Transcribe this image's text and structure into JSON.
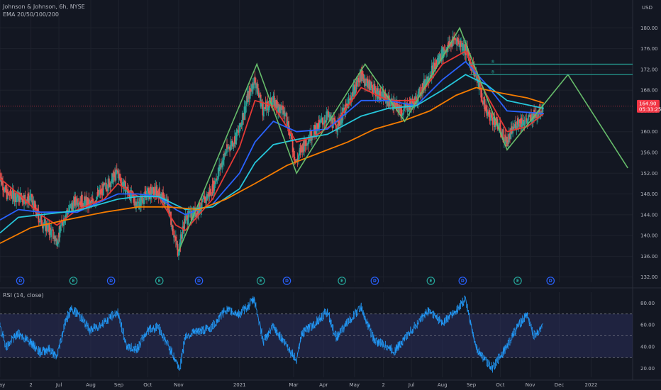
{
  "header": {
    "symbol_line": "Johnson & Johnson, 6h, NYSE",
    "indicator_line": "EMA 20/50/100/200",
    "currency_label": "USD"
  },
  "rsi_panel": {
    "label": "RSI (14, close)"
  },
  "price_badge": {
    "price": "164.90",
    "countdown": "05:33:25",
    "color": "#f23645"
  },
  "colors": {
    "background": "#131722",
    "candle_up": "#26a69a",
    "candle_down": "#ef5350",
    "ema20": "#e53935",
    "ema50": "#2962ff",
    "ema100": "#26c6da",
    "ema200": "#f57c00",
    "pattern": "#66bb6a",
    "levels": "#26a69a",
    "rsi_line": "#2196f3",
    "rsi_band": "#2a2e5a"
  },
  "events": [
    {
      "letter": "D",
      "kind": "dividend",
      "color": "#2962ff",
      "date": "2020-05-22"
    },
    {
      "letter": "E",
      "kind": "earnings",
      "color": "#26a69a",
      "date": "2020-07-16"
    },
    {
      "letter": "D",
      "kind": "dividend",
      "color": "#2962ff",
      "date": "2020-08-24"
    },
    {
      "letter": "E",
      "kind": "earnings",
      "color": "#26a69a",
      "date": "2020-10-13"
    },
    {
      "letter": "D",
      "kind": "dividend",
      "color": "#2962ff",
      "date": "2020-11-23"
    },
    {
      "letter": "E",
      "kind": "earnings",
      "color": "#26a69a",
      "date": "2021-01-26"
    },
    {
      "letter": "D",
      "kind": "dividend",
      "color": "#2962ff",
      "date": "2021-02-22"
    },
    {
      "letter": "E",
      "kind": "earnings",
      "color": "#26a69a",
      "date": "2021-04-20"
    },
    {
      "letter": "D",
      "kind": "dividend",
      "color": "#2962ff",
      "date": "2021-05-24"
    },
    {
      "letter": "E",
      "kind": "earnings",
      "color": "#26a69a",
      "date": "2021-07-21"
    },
    {
      "letter": "D",
      "kind": "dividend",
      "color": "#2962ff",
      "date": "2021-08-23"
    },
    {
      "letter": "E",
      "kind": "earnings",
      "color": "#26a69a",
      "date": "2021-10-19"
    },
    {
      "letter": "D",
      "kind": "dividend",
      "color": "#2962ff",
      "date": "2021-11-22"
    }
  ],
  "chart_data": [
    {
      "type": "line",
      "title": "Johnson & Johnson, 6h, NYSE",
      "x_type": "date",
      "xlim": [
        "2020-05-01",
        "2022-02-15"
      ],
      "ylim": [
        131,
        184
      ],
      "x_ticks": [
        {
          "label": "May",
          "date": "2020-05-01"
        },
        {
          "label": "2",
          "date": "2020-06-02"
        },
        {
          "label": "Jul",
          "date": "2020-07-01"
        },
        {
          "label": "Aug",
          "date": "2020-08-03"
        },
        {
          "label": "Sep",
          "date": "2020-09-01"
        },
        {
          "label": "Oct",
          "date": "2020-10-01"
        },
        {
          "label": "Nov",
          "date": "2020-11-02"
        },
        {
          "label": "2021",
          "date": "2021-01-04"
        },
        {
          "label": "Mar",
          "date": "2021-03-01"
        },
        {
          "label": "Apr",
          "date": "2021-04-01"
        },
        {
          "label": "May",
          "date": "2021-05-03"
        },
        {
          "label": "2",
          "date": "2021-06-02"
        },
        {
          "label": "Jul",
          "date": "2021-07-01"
        },
        {
          "label": "Aug",
          "date": "2021-08-02"
        },
        {
          "label": "Sep",
          "date": "2021-09-01"
        },
        {
          "label": "Oct",
          "date": "2021-10-01"
        },
        {
          "label": "Nov",
          "date": "2021-11-01"
        },
        {
          "label": "Dec",
          "date": "2021-12-01"
        },
        {
          "label": "2022",
          "date": "2022-01-03"
        }
      ],
      "y_ticks": [
        132,
        136,
        140,
        144,
        148,
        152,
        156,
        160,
        164,
        168,
        172,
        176,
        180
      ],
      "last_price": 164.9,
      "price_path": [
        [
          "2020-05-01",
          152
        ],
        [
          "2020-05-08",
          148
        ],
        [
          "2020-05-20",
          147.5
        ],
        [
          "2020-06-02",
          147
        ],
        [
          "2020-06-12",
          143
        ],
        [
          "2020-06-22",
          141
        ],
        [
          "2020-06-29",
          139
        ],
        [
          "2020-07-08",
          144
        ],
        [
          "2020-07-20",
          147
        ],
        [
          "2020-08-03",
          146
        ],
        [
          "2020-08-17",
          149
        ],
        [
          "2020-08-31",
          152
        ],
        [
          "2020-09-10",
          148.5
        ],
        [
          "2020-09-21",
          146
        ],
        [
          "2020-10-01",
          148
        ],
        [
          "2020-10-12",
          148.5
        ],
        [
          "2020-10-22",
          146
        ],
        [
          "2020-10-30",
          139
        ],
        [
          "2020-11-02",
          137
        ],
        [
          "2020-11-09",
          143
        ],
        [
          "2020-11-23",
          145
        ],
        [
          "2020-12-07",
          149
        ],
        [
          "2020-12-21",
          156
        ],
        [
          "2021-01-04",
          160
        ],
        [
          "2021-01-12",
          166
        ],
        [
          "2021-01-20",
          170
        ],
        [
          "2021-01-29",
          164
        ],
        [
          "2021-02-08",
          166
        ],
        [
          "2021-02-22",
          163
        ],
        [
          "2021-03-04",
          154
        ],
        [
          "2021-03-10",
          157
        ],
        [
          "2021-03-22",
          160
        ],
        [
          "2021-04-05",
          163
        ],
        [
          "2021-04-15",
          161
        ],
        [
          "2021-04-26",
          165
        ],
        [
          "2021-05-10",
          171
        ],
        [
          "2021-05-24",
          168
        ],
        [
          "2021-06-07",
          166
        ],
        [
          "2021-06-21",
          164
        ],
        [
          "2021-07-06",
          166
        ],
        [
          "2021-07-20",
          171
        ],
        [
          "2021-08-02",
          175
        ],
        [
          "2021-08-16",
          178
        ],
        [
          "2021-08-26",
          176
        ],
        [
          "2021-09-06",
          171
        ],
        [
          "2021-09-17",
          164
        ],
        [
          "2021-09-30",
          161
        ],
        [
          "2021-10-08",
          158
        ],
        [
          "2021-10-19",
          162
        ],
        [
          "2021-10-29",
          162
        ],
        [
          "2021-11-05",
          163
        ],
        [
          "2021-11-15",
          164.9
        ]
      ],
      "ema_series": [
        {
          "name": "EMA 20",
          "color": "#e53935",
          "values": [
            [
              "2020-05-01",
              151
            ],
            [
              "2020-05-20",
              148
            ],
            [
              "2020-06-12",
              144
            ],
            [
              "2020-06-29",
              142
            ],
            [
              "2020-07-20",
              145
            ],
            [
              "2020-08-17",
              147
            ],
            [
              "2020-08-31",
              150
            ],
            [
              "2020-09-21",
              147.5
            ],
            [
              "2020-10-12",
              147.5
            ],
            [
              "2020-10-30",
              142
            ],
            [
              "2020-11-09",
              141
            ],
            [
              "2020-12-07",
              147
            ],
            [
              "2021-01-04",
              157
            ],
            [
              "2021-01-20",
              166
            ],
            [
              "2021-02-08",
              165
            ],
            [
              "2021-03-04",
              158
            ],
            [
              "2021-03-22",
              159
            ],
            [
              "2021-04-15",
              162
            ],
            [
              "2021-05-10",
              168.5
            ],
            [
              "2021-06-07",
              166
            ],
            [
              "2021-07-06",
              166
            ],
            [
              "2021-08-02",
              173
            ],
            [
              "2021-08-26",
              175.5
            ],
            [
              "2021-09-17",
              167
            ],
            [
              "2021-10-08",
              160
            ],
            [
              "2021-10-29",
              161
            ],
            [
              "2021-11-15",
              163.5
            ]
          ]
        },
        {
          "name": "EMA 50",
          "color": "#2962ff",
          "values": [
            [
              "2020-05-01",
              143
            ],
            [
              "2020-05-20",
              145
            ],
            [
              "2020-06-12",
              144.5
            ],
            [
              "2020-07-20",
              144.5
            ],
            [
              "2020-08-31",
              148
            ],
            [
              "2020-09-21",
              148
            ],
            [
              "2020-10-12",
              147.5
            ],
            [
              "2020-10-30",
              145
            ],
            [
              "2020-11-09",
              144
            ],
            [
              "2020-12-07",
              146
            ],
            [
              "2021-01-04",
              152
            ],
            [
              "2021-01-20",
              158
            ],
            [
              "2021-02-08",
              162
            ],
            [
              "2021-03-04",
              160
            ],
            [
              "2021-04-05",
              160.5
            ],
            [
              "2021-05-10",
              166
            ],
            [
              "2021-06-07",
              166
            ],
            [
              "2021-07-06",
              165
            ],
            [
              "2021-08-02",
              170
            ],
            [
              "2021-08-26",
              173.5
            ],
            [
              "2021-09-17",
              169
            ],
            [
              "2021-10-08",
              164
            ],
            [
              "2021-11-15",
              163.5
            ]
          ]
        },
        {
          "name": "EMA 100",
          "color": "#26c6da",
          "values": [
            [
              "2020-05-01",
              140.5
            ],
            [
              "2020-05-20",
              143.5
            ],
            [
              "2020-06-12",
              144
            ],
            [
              "2020-07-20",
              144.8
            ],
            [
              "2020-08-31",
              147
            ],
            [
              "2020-09-21",
              147.5
            ],
            [
              "2020-10-12",
              147.5
            ],
            [
              "2020-11-09",
              145
            ],
            [
              "2020-12-07",
              145.5
            ],
            [
              "2021-01-04",
              149
            ],
            [
              "2021-01-20",
              154
            ],
            [
              "2021-02-08",
              157.5
            ],
            [
              "2021-03-04",
              158.5
            ],
            [
              "2021-04-05",
              159.5
            ],
            [
              "2021-05-10",
              163
            ],
            [
              "2021-06-07",
              164.5
            ],
            [
              "2021-07-06",
              165
            ],
            [
              "2021-08-02",
              168
            ],
            [
              "2021-08-26",
              171
            ],
            [
              "2021-09-17",
              169
            ],
            [
              "2021-10-08",
              166
            ],
            [
              "2021-11-15",
              164.5
            ]
          ]
        },
        {
          "name": "EMA 200",
          "color": "#f57c00",
          "values": [
            [
              "2020-05-01",
              138.5
            ],
            [
              "2020-06-02",
              141.5
            ],
            [
              "2020-07-08",
              143
            ],
            [
              "2020-08-17",
              144.5
            ],
            [
              "2020-09-21",
              145.5
            ],
            [
              "2020-10-22",
              145.5
            ],
            [
              "2020-11-23",
              145
            ],
            [
              "2020-12-21",
              147
            ],
            [
              "2021-01-20",
              150
            ],
            [
              "2021-02-22",
              153.5
            ],
            [
              "2021-03-22",
              155.5
            ],
            [
              "2021-04-26",
              158
            ],
            [
              "2021-05-24",
              160.5
            ],
            [
              "2021-06-21",
              162
            ],
            [
              "2021-07-20",
              164
            ],
            [
              "2021-08-16",
              167
            ],
            [
              "2021-09-06",
              168.5
            ],
            [
              "2021-09-30",
              167.5
            ],
            [
              "2021-10-29",
              166.5
            ],
            [
              "2021-11-15",
              165.5
            ]
          ]
        }
      ],
      "pattern_line": [
        [
          "2020-11-02",
          137
        ],
        [
          "2021-01-22",
          173
        ],
        [
          "2021-03-04",
          152
        ],
        [
          "2021-05-14",
          173
        ],
        [
          "2021-06-24",
          162
        ],
        [
          "2021-08-20",
          180
        ],
        [
          "2021-10-08",
          156.5
        ],
        [
          "2021-12-10",
          171
        ],
        [
          "2022-02-10",
          153
        ]
      ],
      "horizontal_levels": [
        {
          "value": 173,
          "from": "2021-08-30",
          "to": "2022-02-15",
          "marker": "®"
        },
        {
          "value": 171,
          "from": "2021-08-30",
          "to": "2022-02-15",
          "marker": "®"
        }
      ]
    },
    {
      "type": "line",
      "title": "RSI (14, close)",
      "ylim": [
        12,
        90
      ],
      "y_ticks": [
        20,
        40,
        60,
        80
      ],
      "band": [
        30,
        70
      ],
      "midline": 50,
      "values": [
        [
          "2020-05-01",
          58
        ],
        [
          "2020-05-08",
          40
        ],
        [
          "2020-05-20",
          52
        ],
        [
          "2020-06-02",
          44
        ],
        [
          "2020-06-12",
          35
        ],
        [
          "2020-06-22",
          38
        ],
        [
          "2020-06-29",
          30
        ],
        [
          "2020-07-08",
          62
        ],
        [
          "2020-07-14",
          74
        ],
        [
          "2020-07-22",
          70
        ],
        [
          "2020-08-03",
          55
        ],
        [
          "2020-08-17",
          62
        ],
        [
          "2020-08-31",
          72
        ],
        [
          "2020-09-10",
          40
        ],
        [
          "2020-09-21",
          38
        ],
        [
          "2020-10-01",
          55
        ],
        [
          "2020-10-12",
          58
        ],
        [
          "2020-10-22",
          42
        ],
        [
          "2020-10-30",
          28
        ],
        [
          "2020-11-04",
          20
        ],
        [
          "2020-11-09",
          50
        ],
        [
          "2020-11-23",
          54
        ],
        [
          "2020-12-07",
          58
        ],
        [
          "2020-12-21",
          74
        ],
        [
          "2021-01-04",
          70
        ],
        [
          "2021-01-12",
          76
        ],
        [
          "2021-01-20",
          84
        ],
        [
          "2021-01-29",
          45
        ],
        [
          "2021-02-08",
          58
        ],
        [
          "2021-02-22",
          42
        ],
        [
          "2021-03-04",
          28
        ],
        [
          "2021-03-10",
          52
        ],
        [
          "2021-03-22",
          60
        ],
        [
          "2021-04-05",
          72
        ],
        [
          "2021-04-15",
          48
        ],
        [
          "2021-04-26",
          62
        ],
        [
          "2021-05-10",
          76
        ],
        [
          "2021-05-24",
          46
        ],
        [
          "2021-06-07",
          40
        ],
        [
          "2021-06-14",
          36
        ],
        [
          "2021-06-21",
          44
        ],
        [
          "2021-07-06",
          60
        ],
        [
          "2021-07-20",
          74
        ],
        [
          "2021-08-02",
          62
        ],
        [
          "2021-08-16",
          72
        ],
        [
          "2021-08-26",
          84
        ],
        [
          "2021-09-06",
          40
        ],
        [
          "2021-09-17",
          26
        ],
        [
          "2021-09-24",
          20
        ],
        [
          "2021-09-30",
          30
        ],
        [
          "2021-10-08",
          40
        ],
        [
          "2021-10-19",
          58
        ],
        [
          "2021-10-29",
          70
        ],
        [
          "2021-11-05",
          50
        ],
        [
          "2021-11-15",
          58
        ]
      ]
    }
  ]
}
